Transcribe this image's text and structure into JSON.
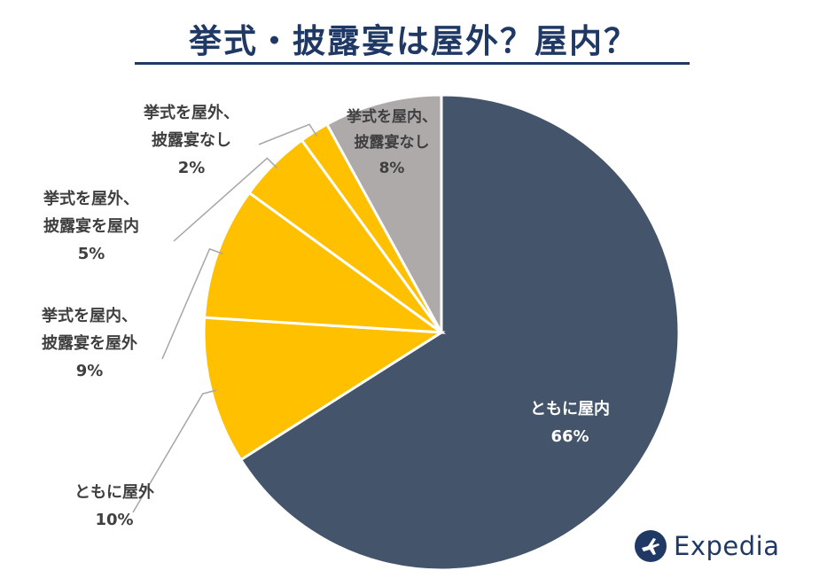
{
  "title": "挙式・披露宴は屋外？屋内？",
  "brand": {
    "name": "Expedia",
    "icon": "airplane-icon"
  },
  "colors": {
    "title": "#1f3864",
    "dark": "#44546a",
    "yellow": "#ffc000",
    "grey": "#aeaaaa",
    "leader": "#a6a6a6"
  },
  "chart_data": {
    "type": "pie",
    "title": "挙式・披露宴は屋外？屋内？",
    "start": "12 o'clock",
    "direction": "clockwise",
    "slices": [
      {
        "line1": "ともに屋内",
        "line2": "",
        "pct_label": "66%",
        "value": 66,
        "color": "#44546a"
      },
      {
        "line1": "ともに屋外",
        "line2": "",
        "pct_label": "10%",
        "value": 10,
        "color": "#ffc000"
      },
      {
        "line1": "挙式を屋内、",
        "line2": "披露宴を屋外",
        "pct_label": "9%",
        "value": 9,
        "color": "#ffc000"
      },
      {
        "line1": "挙式を屋外、",
        "line2": "披露宴を屋内",
        "pct_label": "5%",
        "value": 5,
        "color": "#ffc000"
      },
      {
        "line1": "挙式を屋外、",
        "line2": "披露宴なし",
        "pct_label": "2%",
        "value": 2,
        "color": "#ffc000"
      },
      {
        "line1": "挙式を屋内、",
        "line2": "披露宴なし",
        "pct_label": "8%",
        "value": 8,
        "color": "#aeaaaa"
      }
    ]
  }
}
